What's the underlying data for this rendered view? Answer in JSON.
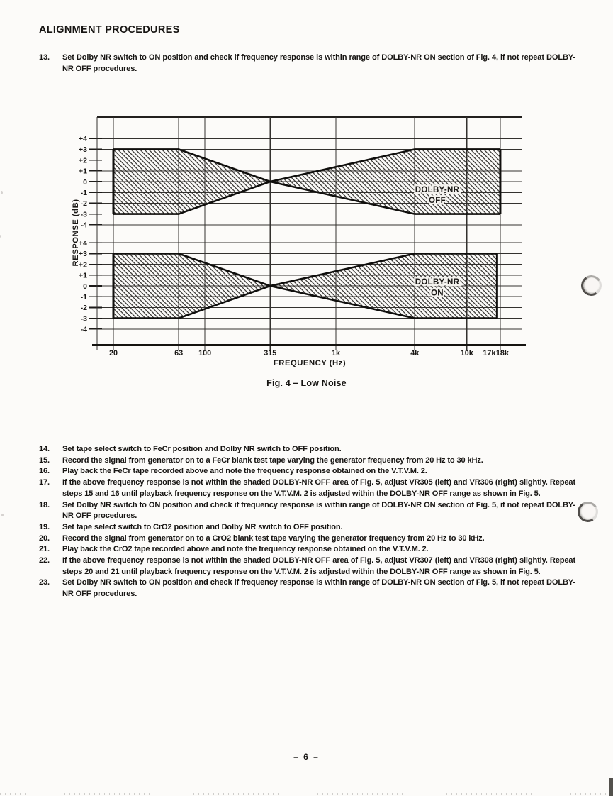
{
  "page": {
    "heading": "ALIGNMENT PROCEDURES",
    "page_number": "– 6 –"
  },
  "procedure_intro": {
    "num": "13.",
    "text": "Set Dolby NR switch to ON position and check if frequency response is within range of DOLBY-NR ON section of Fig. 4, if not repeat DOLBY-NR OFF procedures."
  },
  "steps": [
    {
      "num": "14.",
      "text": "Set tape select switch to FeCr position and Dolby NR switch to OFF position."
    },
    {
      "num": "15.",
      "text": "Record the signal from generator on to a FeCr blank test tape varying the generator frequency from 20 Hz to 30 kHz."
    },
    {
      "num": "16.",
      "text": "Play back the FeCr tape recorded above and note the frequency response obtained on the V.T.V.M. 2."
    },
    {
      "num": "17.",
      "text": "If the above frequency response is not within the shaded DOLBY-NR OFF area of Fig. 5, adjust VR305 (left) and VR306 (right) slightly.  Repeat steps 15 and 16 until playback frequency response on the V.T.V.M. 2 is adjusted within the DOLBY-NR OFF range as shown in Fig. 5."
    },
    {
      "num": "18.",
      "text": "Set Dolby NR switch to ON position and check if frequency response is within range of DOLBY-NR ON section of Fig. 5, if not repeat DOLBY-NR OFF procedures."
    },
    {
      "num": "19.",
      "text": "Set tape select switch to CrO2 position and Dolby NR switch to OFF position."
    },
    {
      "num": "20.",
      "text": "Record the signal from generator on to a CrO2 blank test tape varying the generator frequency from 20 Hz to 30 kHz."
    },
    {
      "num": "21.",
      "text": "Play back the CrO2 tape recorded above and note the frequency response obtained on the V.T.V.M. 2."
    },
    {
      "num": "22.",
      "text": "If the above frequency response is not within the shaded DOLBY-NR OFF area of Fig. 5, adjust VR307 (left) and VR308 (right) slightly.  Repeat steps 20 and 21 until playback frequency response on the V.T.V.M. 2 is adjusted within the DOLBY-NR OFF range as shown in Fig. 5."
    },
    {
      "num": "23.",
      "text": "Set Dolby NR switch to ON position and check if frequency response is within range of DOLBY-NR ON section of Fig. 5, if not repeat DOLBY-NR OFF procedures."
    }
  ],
  "figure": {
    "caption": "Fig. 4 – Low Noise"
  },
  "chart_data": {
    "type": "area",
    "title": "Fig. 4 – Low Noise",
    "xlabel": "FREQUENCY (Hz)",
    "ylabel": "RESPONSE (dB)",
    "x_scale": "log",
    "x_range_hz": [
      20,
      18000
    ],
    "ylim": [
      -4,
      4
    ],
    "grid": true,
    "x_ticks": [
      {
        "label": "20",
        "value": 20
      },
      {
        "label": "63",
        "value": 63
      },
      {
        "label": "100",
        "value": 100
      },
      {
        "label": "315",
        "value": 315
      },
      {
        "label": "1k",
        "value": 1000
      },
      {
        "label": "4k",
        "value": 4000
      },
      {
        "label": "10k",
        "value": 10000
      },
      {
        "label": "17k",
        "value": 17000
      },
      {
        "label": "18k",
        "value": 18000
      }
    ],
    "y_ticks": [
      {
        "label": "+4",
        "value": 4
      },
      {
        "label": "+3",
        "value": 3
      },
      {
        "label": "+2",
        "value": 2
      },
      {
        "label": "+1",
        "value": 1
      },
      {
        "label": "0",
        "value": 0
      },
      {
        "label": "-1",
        "value": -1
      },
      {
        "label": "-2",
        "value": -2
      },
      {
        "label": "-3",
        "value": -3
      },
      {
        "label": "-4",
        "value": -4
      }
    ],
    "panels": [
      {
        "name": "DOLBY-NR OFF",
        "label_lines": [
          "DOLBY-NR",
          "OFF"
        ],
        "band_style": "diagonal-hatch",
        "upper_bound_db": [
          [
            20,
            3
          ],
          [
            63,
            3
          ],
          [
            315,
            0
          ],
          [
            4000,
            3
          ],
          [
            18000,
            3
          ]
        ],
        "lower_bound_db": [
          [
            20,
            -3
          ],
          [
            63,
            -3
          ],
          [
            315,
            0
          ],
          [
            4000,
            -3
          ],
          [
            18000,
            -3
          ]
        ]
      },
      {
        "name": "DOLBY-NR ON",
        "label_lines": [
          "DOLBY-NR",
          "ON"
        ],
        "band_style": "diagonal-hatch",
        "upper_bound_db": [
          [
            20,
            3
          ],
          [
            63,
            3
          ],
          [
            315,
            0
          ],
          [
            4000,
            3
          ],
          [
            17000,
            3
          ]
        ],
        "lower_bound_db": [
          [
            20,
            -3
          ],
          [
            63,
            -3
          ],
          [
            315,
            0
          ],
          [
            4000,
            -3
          ],
          [
            17000,
            -3
          ]
        ]
      }
    ]
  }
}
